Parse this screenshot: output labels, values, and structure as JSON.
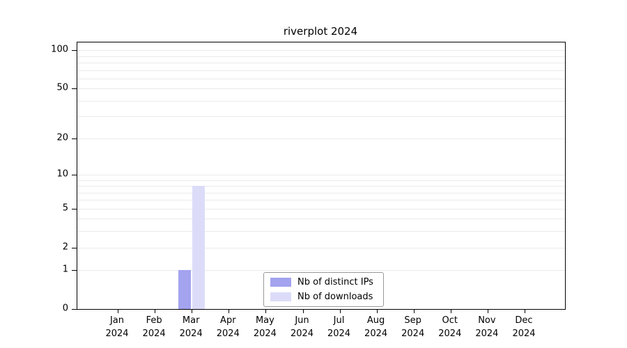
{
  "chart_data": {
    "type": "bar",
    "title": "riverplot 2024",
    "xlabel": "",
    "ylabel": "",
    "categories": [
      "Jan",
      "Feb",
      "Mar",
      "Apr",
      "May",
      "Jun",
      "Jul",
      "Aug",
      "Sep",
      "Oct",
      "Nov",
      "Dec"
    ],
    "category_year": "2024",
    "series": [
      {
        "name": "Nb of distinct IPs",
        "color": "#a3a3ef",
        "values": [
          0,
          0,
          1,
          0,
          0,
          0,
          0,
          0,
          0,
          0,
          0,
          0
        ]
      },
      {
        "name": "Nb of downloads",
        "color": "#dcdcf9",
        "values": [
          0,
          0,
          8,
          0,
          0,
          0,
          0,
          0,
          0,
          0,
          0,
          0
        ]
      }
    ],
    "yscale": "log1p",
    "ylim": [
      0,
      115
    ],
    "y_ticks": [
      0,
      1,
      2,
      5,
      10,
      20,
      50,
      100
    ],
    "gridlines": [
      1,
      2,
      3,
      4,
      5,
      6,
      7,
      8,
      9,
      10,
      20,
      30,
      40,
      50,
      60,
      70,
      80,
      90,
      100
    ],
    "grid": "horizontal",
    "legend_position": "bottom-center-inside"
  }
}
